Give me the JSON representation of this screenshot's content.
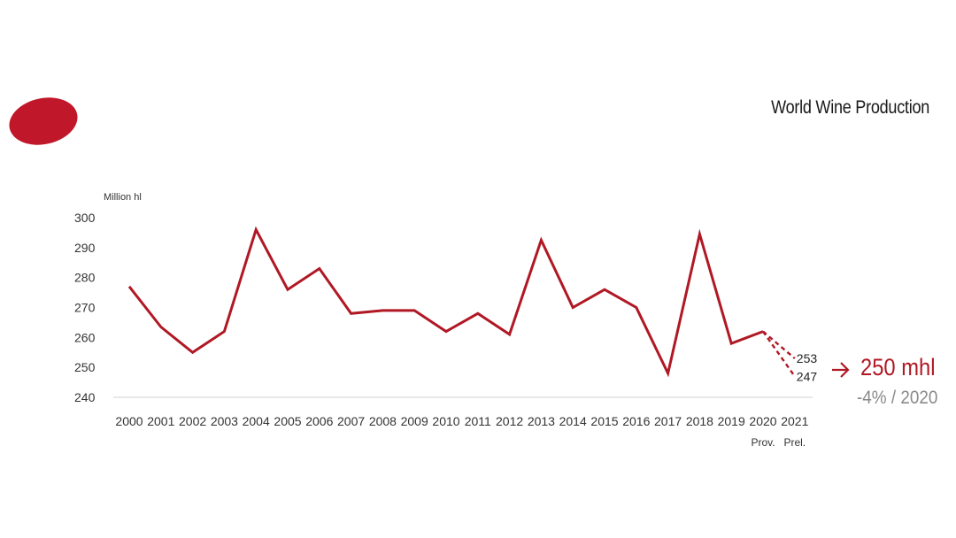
{
  "header": {
    "title": "World Wine Production"
  },
  "colors": {
    "accent": "#b01824",
    "axis": "#d0d0d0",
    "muted": "#8a8a8a"
  },
  "chart_data": {
    "type": "line",
    "title": "",
    "ylabel": "Million hl",
    "xlabel": "",
    "ylim": [
      240,
      300
    ],
    "yticks": [
      "300",
      "290",
      "280",
      "270",
      "260",
      "250",
      "240"
    ],
    "grid": false,
    "categories": [
      "2000",
      "2001",
      "2002",
      "2003",
      "2004",
      "2005",
      "2006",
      "2007",
      "2008",
      "2009",
      "2010",
      "2011",
      "2012",
      "2013",
      "2014",
      "2015",
      "2016",
      "2017",
      "2018",
      "2019",
      "2020",
      "2021"
    ],
    "category_sublabels": {
      "2020": "Prov.",
      "2021": "Prel."
    },
    "series": [
      {
        "values": [
          277,
          263.5,
          255,
          262,
          296,
          276,
          283,
          268,
          269,
          269,
          262,
          268,
          261,
          292.5,
          270,
          276,
          270,
          248,
          294.5,
          258,
          262,
          null
        ],
        "style": "solid"
      },
      {
        "values": [
          null,
          null,
          null,
          null,
          null,
          null,
          null,
          null,
          null,
          null,
          null,
          null,
          null,
          null,
          null,
          null,
          null,
          null,
          null,
          null,
          262,
          253
        ],
        "style": "dashed",
        "end_label": "253"
      },
      {
        "values": [
          null,
          null,
          null,
          null,
          null,
          null,
          null,
          null,
          null,
          null,
          null,
          null,
          null,
          null,
          null,
          null,
          null,
          null,
          null,
          null,
          262,
          247
        ],
        "style": "dashed",
        "end_label": "247"
      }
    ]
  },
  "callout": {
    "arrow": "→",
    "value": "250 mhl",
    "change": "-4% / 2020"
  }
}
